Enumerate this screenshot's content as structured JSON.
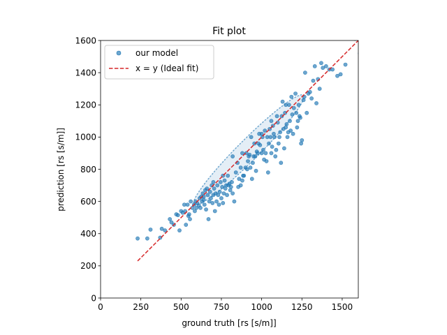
{
  "chart_data": {
    "type": "scatter",
    "title": "Fit plot",
    "xlabel": "ground truth [rs [s/m]]",
    "ylabel": "prediction [rs [s/m]]",
    "xlim": [
      0,
      1600
    ],
    "ylim": [
      0,
      1600
    ],
    "xticks": [
      0,
      250,
      500,
      750,
      1000,
      1250,
      1500
    ],
    "yticks": [
      0,
      200,
      400,
      600,
      800,
      1000,
      1200,
      1400,
      1600
    ],
    "grid": false,
    "legend_position": "top-left",
    "legend": [
      "our model",
      "x = y (Ideal fit)"
    ],
    "colors": {
      "points": "#1f77b4",
      "ideal_line": "#d62728",
      "ellipse_fill": "#1f77b4",
      "ellipse_edge": "#1f77b4"
    },
    "series": [
      {
        "name": "our model",
        "kind": "points",
        "points": [
          [
            230,
            370
          ],
          [
            290,
            370
          ],
          [
            310,
            425
          ],
          [
            370,
            375
          ],
          [
            380,
            430
          ],
          [
            400,
            420
          ],
          [
            430,
            490
          ],
          [
            440,
            470
          ],
          [
            455,
            455
          ],
          [
            470,
            520
          ],
          [
            480,
            515
          ],
          [
            490,
            420
          ],
          [
            500,
            540
          ],
          [
            510,
            530
          ],
          [
            520,
            580
          ],
          [
            525,
            540
          ],
          [
            530,
            455
          ],
          [
            540,
            580
          ],
          [
            545,
            510
          ],
          [
            550,
            520
          ],
          [
            555,
            490
          ],
          [
            560,
            600
          ],
          [
            570,
            560
          ],
          [
            580,
            580
          ],
          [
            585,
            540
          ],
          [
            590,
            600
          ],
          [
            595,
            560
          ],
          [
            600,
            590
          ],
          [
            610,
            575
          ],
          [
            615,
            620
          ],
          [
            620,
            560
          ],
          [
            625,
            630
          ],
          [
            630,
            600
          ],
          [
            635,
            650
          ],
          [
            640,
            610
          ],
          [
            645,
            580
          ],
          [
            650,
            670
          ],
          [
            655,
            550
          ],
          [
            660,
            680
          ],
          [
            665,
            640
          ],
          [
            670,
            490
          ],
          [
            675,
            600
          ],
          [
            680,
            660
          ],
          [
            685,
            620
          ],
          [
            690,
            700
          ],
          [
            695,
            590
          ],
          [
            700,
            640
          ],
          [
            705,
            680
          ],
          [
            710,
            540
          ],
          [
            715,
            650
          ],
          [
            720,
            600
          ],
          [
            725,
            700
          ],
          [
            730,
            640
          ],
          [
            735,
            580
          ],
          [
            740,
            660
          ],
          [
            745,
            720
          ],
          [
            750,
            620
          ],
          [
            755,
            690
          ],
          [
            760,
            590
          ],
          [
            765,
            650
          ],
          [
            770,
            730
          ],
          [
            775,
            680
          ],
          [
            780,
            700
          ],
          [
            785,
            640
          ],
          [
            790,
            760
          ],
          [
            795,
            700
          ],
          [
            800,
            710
          ],
          [
            805,
            670
          ],
          [
            810,
            690
          ],
          [
            815,
            720
          ],
          [
            820,
            650
          ],
          [
            830,
            600
          ],
          [
            840,
            780
          ],
          [
            850,
            840
          ],
          [
            855,
            690
          ],
          [
            860,
            740
          ],
          [
            870,
            700
          ],
          [
            880,
            730
          ],
          [
            885,
            760
          ],
          [
            890,
            760
          ],
          [
            900,
            810
          ],
          [
            905,
            900
          ],
          [
            910,
            800
          ],
          [
            915,
            850
          ],
          [
            920,
            880
          ],
          [
            925,
            890
          ],
          [
            930,
            810
          ],
          [
            935,
            1000
          ],
          [
            940,
            740
          ],
          [
            945,
            840
          ],
          [
            950,
            880
          ],
          [
            955,
            960
          ],
          [
            960,
            880
          ],
          [
            965,
            790
          ],
          [
            970,
            910
          ],
          [
            975,
            900
          ],
          [
            985,
            1020
          ],
          [
            990,
            950
          ],
          [
            1000,
            900
          ],
          [
            1005,
            1000
          ],
          [
            1010,
            920
          ],
          [
            1015,
            860
          ],
          [
            1020,
            1040
          ],
          [
            1025,
            900
          ],
          [
            1030,
            850
          ],
          [
            1035,
            1000
          ],
          [
            1040,
            780
          ],
          [
            1045,
            960
          ],
          [
            1050,
            1050
          ],
          [
            1055,
            1000
          ],
          [
            1060,
            900
          ],
          [
            1065,
            940
          ],
          [
            1070,
            1070
          ],
          [
            1075,
            1020
          ],
          [
            1080,
            1000
          ],
          [
            1085,
            880
          ],
          [
            1090,
            920
          ],
          [
            1095,
            1130
          ],
          [
            1100,
            1090
          ],
          [
            1105,
            960
          ],
          [
            1110,
            1000
          ],
          [
            1115,
            1030
          ],
          [
            1120,
            840
          ],
          [
            1125,
            1130
          ],
          [
            1130,
            1220
          ],
          [
            1135,
            1050
          ],
          [
            1140,
            930
          ],
          [
            1145,
            1150
          ],
          [
            1150,
            1060
          ],
          [
            1155,
            1080
          ],
          [
            1160,
            1000
          ],
          [
            1165,
            1030
          ],
          [
            1170,
            1200
          ],
          [
            1175,
            1100
          ],
          [
            1180,
            1040
          ],
          [
            1185,
            1250
          ],
          [
            1190,
            1140
          ],
          [
            1195,
            1020
          ],
          [
            1200,
            1180
          ],
          [
            1210,
            1270
          ],
          [
            1215,
            1150
          ],
          [
            1220,
            1060
          ],
          [
            1225,
            1100
          ],
          [
            1230,
            1200
          ],
          [
            1235,
            1130
          ],
          [
            1240,
            1120
          ],
          [
            1245,
            960
          ],
          [
            1250,
            980
          ],
          [
            1260,
            1230
          ],
          [
            1265,
            1250
          ],
          [
            1270,
            1400
          ],
          [
            1280,
            1150
          ],
          [
            1290,
            1270
          ],
          [
            1300,
            1280
          ],
          [
            1310,
            1240
          ],
          [
            1320,
            1350
          ],
          [
            1330,
            1440
          ],
          [
            1340,
            1210
          ],
          [
            1350,
            1360
          ],
          [
            1360,
            1300
          ],
          [
            1370,
            1460
          ],
          [
            1380,
            1430
          ],
          [
            1400,
            1440
          ],
          [
            1420,
            1420
          ],
          [
            1440,
            1420
          ],
          [
            1470,
            1380
          ],
          [
            1490,
            1390
          ],
          [
            1520,
            1450
          ],
          [
            1580,
            1610
          ],
          [
            1610,
            1520
          ],
          [
            1060,
            1100
          ],
          [
            980,
            960
          ],
          [
            870,
            810
          ],
          [
            760,
            760
          ],
          [
            640,
            630
          ],
          [
            700,
            720
          ],
          [
            820,
            880
          ],
          [
            880,
            900
          ],
          [
            1150,
            1200
          ],
          [
            1000,
            1020
          ]
        ]
      },
      {
        "name": "x = y (Ideal fit)",
        "kind": "line",
        "points": [
          [
            230,
            230
          ],
          [
            1610,
            1610
          ]
        ]
      }
    ],
    "confidence_ellipse": {
      "center": [
        920,
        920
      ],
      "axis_angle_deg": 45,
      "major_semi_axis": 960,
      "minor_semi_axis": 130
    }
  }
}
